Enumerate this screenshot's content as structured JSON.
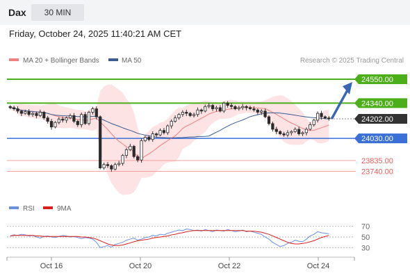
{
  "header": {
    "symbol": "Dax",
    "timeframe": "30 MIN"
  },
  "timestamp": "Friday, October 24, 2025 11:40:21 AM CET",
  "legend": {
    "ma20_label": "MA 20 + Bollinger Bands",
    "ma50_label": "MA 50",
    "credit": "Research © 2025 Trading Central"
  },
  "rsi_legend": {
    "rsi_label": "RSI",
    "ma_label": "9MA"
  },
  "colors": {
    "resistance": "#4caf1a",
    "support": "#3a6fd8",
    "minor": "#e85c5c",
    "current": "#333333",
    "ma20": "#f08080",
    "ma50": "#3b5b92",
    "rsi": "#6d8fe0",
    "rsi_ma": "#d91e1e",
    "arrow": "#3a66b5",
    "bands": "#fde3e3"
  },
  "chart_data": [
    {
      "type": "candlestick",
      "x_ticks": [
        "Oct 16",
        "Oct 20",
        "Oct 22",
        "Oct 24"
      ],
      "ylim": [
        23560,
        24660
      ],
      "levels": [
        {
          "label": "24550.00",
          "value": 24550,
          "kind": "resistance"
        },
        {
          "label": "24340.00",
          "value": 24340,
          "kind": "resistance"
        },
        {
          "label": "24202.00",
          "value": 24202,
          "kind": "current"
        },
        {
          "label": "24030.00",
          "value": 24030,
          "kind": "support"
        },
        {
          "label": "23835.00",
          "value": 23835,
          "kind": "minor"
        },
        {
          "label": "23740.00",
          "value": 23740,
          "kind": "minor"
        }
      ],
      "close": [
        24300,
        24290,
        24270,
        24250,
        24265,
        24240,
        24250,
        24230,
        24260,
        24210,
        24180,
        24130,
        24170,
        24200,
        24190,
        24210,
        24230,
        24180,
        24150,
        24240,
        24160,
        24260,
        24290,
        24220,
        23770,
        23800,
        23790,
        23760,
        23800,
        23810,
        23880,
        23930,
        23960,
        23870,
        23840,
        24010,
        24040,
        24020,
        24070,
        24060,
        24100,
        24080,
        24140,
        24180,
        24210,
        24240,
        24260,
        24250,
        24230,
        24240,
        24280,
        24270,
        24310,
        24320,
        24290,
        24300,
        24270,
        24340,
        24320,
        24310,
        24290,
        24300,
        24310,
        24300,
        24290,
        24280,
        24260,
        24270,
        24220,
        24160,
        24110,
        24090,
        24070,
        24060,
        24080,
        24090,
        24110,
        24070,
        24080,
        24110,
        24150,
        24190,
        24250,
        24220,
        24210,
        24202
      ],
      "forecast_target": 24550
    },
    {
      "type": "line",
      "title": "RSI",
      "yticks": [
        30,
        50,
        70
      ],
      "ylim": [
        20,
        80
      ],
      "series": [
        {
          "name": "RSI",
          "values": [
            52,
            54,
            53,
            55,
            54,
            52,
            53,
            50,
            48,
            51,
            52,
            50,
            49,
            51,
            53,
            52,
            50,
            51,
            49,
            47,
            49,
            48,
            46,
            40,
            30,
            32,
            34,
            31,
            36,
            38,
            40,
            44,
            46,
            48,
            44,
            46,
            49,
            50,
            53,
            52,
            55,
            54,
            57,
            59,
            61,
            63,
            62,
            65,
            64,
            62,
            63,
            61,
            64,
            62,
            60,
            63,
            62,
            61,
            64,
            62,
            60,
            61,
            63,
            60,
            61,
            59,
            57,
            55,
            50,
            46,
            40,
            36,
            32,
            34,
            38,
            40,
            44,
            42,
            41,
            46,
            52,
            55,
            60,
            58,
            57,
            56
          ]
        },
        {
          "name": "9MA",
          "values": [
            52,
            53,
            53,
            53,
            53,
            53,
            53,
            52,
            52,
            51,
            51,
            51,
            51,
            51,
            51,
            51,
            51,
            51,
            51,
            50,
            50,
            49,
            48,
            46,
            43,
            40,
            37,
            35,
            34,
            34,
            35,
            37,
            39,
            41,
            43,
            44,
            45,
            46,
            48,
            49,
            50,
            51,
            52,
            54,
            55,
            57,
            58,
            60,
            61,
            62,
            62,
            62,
            62,
            62,
            62,
            62,
            62,
            62,
            62,
            62,
            62,
            62,
            62,
            61,
            61,
            61,
            60,
            59,
            57,
            55,
            52,
            49,
            46,
            43,
            40,
            38,
            37,
            37,
            38,
            39,
            41,
            43,
            46,
            49,
            51,
            53
          ]
        }
      ]
    }
  ]
}
